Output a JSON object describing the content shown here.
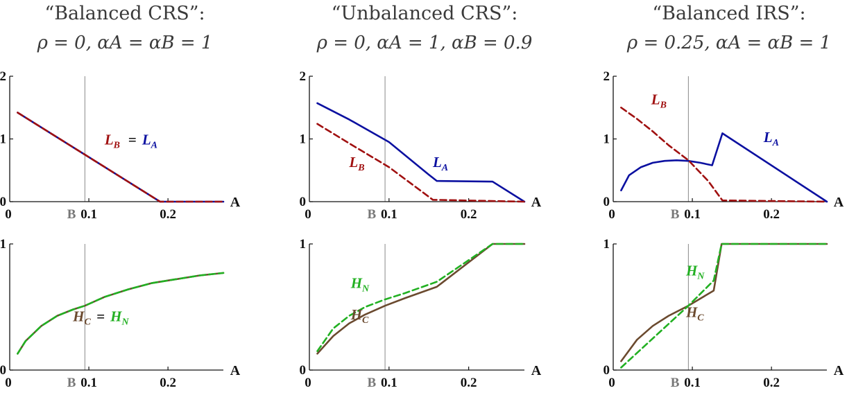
{
  "colors": {
    "L_A": "#0b10a0",
    "L_B": "#a01010",
    "H_C": "#6b4a2f",
    "H_N": "#22b022",
    "axis": "#111111",
    "b_line": "#888888",
    "title": "#3a3a3a"
  },
  "columns": [
    {
      "title": "“Balanced CRS”:",
      "subtitle": "ρ = 0, αA = αB = 1"
    },
    {
      "title": "“Unbalanced CRS”:",
      "subtitle": "ρ = 0, αA = 1, αB = 0.9"
    },
    {
      "title": "“Balanced IRS”:",
      "subtitle": "ρ = 0.25, αA = αB = 1"
    }
  ],
  "chart_data": [
    {
      "type": "line",
      "xlabel": "A",
      "ylim": [
        0,
        2
      ],
      "xlim": [
        0,
        0.27
      ],
      "yticks": [
        "0",
        "1",
        "2"
      ],
      "xticks": [
        "0",
        "0.1",
        "0.2"
      ],
      "marker_label": "B",
      "marker_x": 0.095,
      "annotation": {
        "left": "L",
        "left_sub": "B",
        "eq": "=",
        "right": "L",
        "right_sub": "A"
      },
      "series": [
        {
          "name": "L_A",
          "key": "L_A",
          "dash": false,
          "x": [
            0.01,
            0.19,
            0.27
          ],
          "values": [
            1.42,
            0,
            0
          ]
        },
        {
          "name": "L_B",
          "key": "L_B",
          "dash": true,
          "x": [
            0.01,
            0.19,
            0.27
          ],
          "values": [
            1.42,
            0,
            0
          ]
        }
      ]
    },
    {
      "type": "line",
      "xlabel": "A",
      "ylim": [
        0,
        2
      ],
      "xlim": [
        0,
        0.27
      ],
      "yticks": [
        "0",
        "1",
        "2"
      ],
      "xticks": [
        "0",
        "0.1",
        "0.2"
      ],
      "marker_label": "B",
      "marker_x": 0.095,
      "labels": [
        {
          "text": "L",
          "sub": "B",
          "key": "L_B"
        },
        {
          "text": "L",
          "sub": "A",
          "key": "L_A"
        }
      ],
      "series": [
        {
          "name": "L_A",
          "key": "L_A",
          "dash": false,
          "x": [
            0.01,
            0.05,
            0.1,
            0.15,
            0.16,
            0.23,
            0.27
          ],
          "values": [
            1.57,
            1.31,
            0.95,
            0.43,
            0.33,
            0.32,
            0
          ]
        },
        {
          "name": "L_B",
          "key": "L_B",
          "dash": true,
          "x": [
            0.01,
            0.05,
            0.1,
            0.155,
            0.27
          ],
          "values": [
            1.24,
            0.93,
            0.55,
            0.03,
            0
          ]
        }
      ]
    },
    {
      "type": "line",
      "xlabel": "A",
      "ylim": [
        0,
        2
      ],
      "xlim": [
        0,
        0.27
      ],
      "yticks": [
        "0",
        "1",
        "2"
      ],
      "xticks": [
        "0",
        "0.1",
        "0.2"
      ],
      "marker_label": "B",
      "marker_x": 0.095,
      "labels": [
        {
          "text": "L",
          "sub": "B",
          "key": "L_B"
        },
        {
          "text": "L",
          "sub": "A",
          "key": "L_A"
        }
      ],
      "series": [
        {
          "name": "L_A",
          "key": "L_A",
          "dash": false,
          "x": [
            0.01,
            0.02,
            0.035,
            0.05,
            0.065,
            0.08,
            0.095,
            0.11,
            0.125,
            0.138,
            0.27
          ],
          "values": [
            0.18,
            0.42,
            0.55,
            0.62,
            0.65,
            0.66,
            0.65,
            0.62,
            0.58,
            1.09,
            0
          ]
        },
        {
          "name": "L_B",
          "key": "L_B",
          "dash": true,
          "x": [
            0.01,
            0.03,
            0.05,
            0.07,
            0.095,
            0.12,
            0.138,
            0.27
          ],
          "values": [
            1.5,
            1.32,
            1.12,
            0.9,
            0.66,
            0.33,
            0.02,
            0
          ]
        }
      ]
    },
    {
      "type": "line",
      "xlabel": "A",
      "ylim": [
        0,
        1
      ],
      "xlim": [
        0,
        0.27
      ],
      "yticks": [
        "0",
        "1"
      ],
      "xticks": [
        "0",
        "0.1",
        "0.2"
      ],
      "marker_label": "B",
      "marker_x": 0.095,
      "annotation": {
        "left": "H",
        "left_sub": "C",
        "eq": "=",
        "right": "H",
        "right_sub": "N"
      },
      "series": [
        {
          "name": "H_C",
          "key": "H_C",
          "dash": false,
          "x": [
            0.01,
            0.02,
            0.04,
            0.06,
            0.08,
            0.095,
            0.12,
            0.15,
            0.18,
            0.21,
            0.24,
            0.27
          ],
          "values": [
            0.13,
            0.23,
            0.35,
            0.43,
            0.48,
            0.51,
            0.58,
            0.64,
            0.69,
            0.72,
            0.75,
            0.77
          ]
        },
        {
          "name": "H_N",
          "key": "H_N",
          "dash": true,
          "x": [
            0.01,
            0.02,
            0.04,
            0.06,
            0.08,
            0.095,
            0.12,
            0.15,
            0.18,
            0.21,
            0.24,
            0.27
          ],
          "values": [
            0.13,
            0.23,
            0.35,
            0.43,
            0.48,
            0.51,
            0.58,
            0.64,
            0.69,
            0.72,
            0.75,
            0.77
          ]
        }
      ]
    },
    {
      "type": "line",
      "xlabel": "A",
      "ylim": [
        0,
        1
      ],
      "xlim": [
        0,
        0.27
      ],
      "yticks": [
        "0",
        "1"
      ],
      "xticks": [
        "0",
        "0.1",
        "0.2"
      ],
      "marker_label": "B",
      "marker_x": 0.095,
      "labels": [
        {
          "text": "H",
          "sub": "N",
          "key": "H_N"
        },
        {
          "text": "H",
          "sub": "C",
          "key": "H_C"
        }
      ],
      "series": [
        {
          "name": "H_C",
          "key": "H_C",
          "dash": false,
          "x": [
            0.01,
            0.03,
            0.05,
            0.07,
            0.095,
            0.12,
            0.16,
            0.23,
            0.27
          ],
          "values": [
            0.13,
            0.27,
            0.37,
            0.44,
            0.51,
            0.57,
            0.66,
            1.0,
            1.0
          ]
        },
        {
          "name": "H_N",
          "key": "H_N",
          "dash": true,
          "x": [
            0.01,
            0.03,
            0.05,
            0.07,
            0.095,
            0.12,
            0.16,
            0.23,
            0.27
          ],
          "values": [
            0.15,
            0.33,
            0.43,
            0.5,
            0.56,
            0.61,
            0.7,
            1.0,
            1.0
          ]
        }
      ]
    },
    {
      "type": "line",
      "xlabel": "A",
      "ylim": [
        0,
        1
      ],
      "xlim": [
        0,
        0.27
      ],
      "yticks": [
        "0",
        "1"
      ],
      "xticks": [
        "0",
        "0.1",
        "0.2"
      ],
      "marker_label": "B",
      "marker_x": 0.095,
      "labels": [
        {
          "text": "H",
          "sub": "N",
          "key": "H_N"
        },
        {
          "text": "H",
          "sub": "C",
          "key": "H_C"
        }
      ],
      "series": [
        {
          "name": "H_C",
          "key": "H_C",
          "dash": false,
          "x": [
            0.01,
            0.03,
            0.05,
            0.07,
            0.095,
            0.127,
            0.137,
            0.27
          ],
          "values": [
            0.07,
            0.24,
            0.35,
            0.43,
            0.51,
            0.63,
            1.0,
            1.0
          ]
        },
        {
          "name": "H_N",
          "key": "H_N",
          "dash": true,
          "x": [
            0.01,
            0.095,
            0.127,
            0.137,
            0.27
          ],
          "values": [
            0.02,
            0.51,
            0.71,
            1.0,
            1.0
          ]
        }
      ]
    }
  ]
}
